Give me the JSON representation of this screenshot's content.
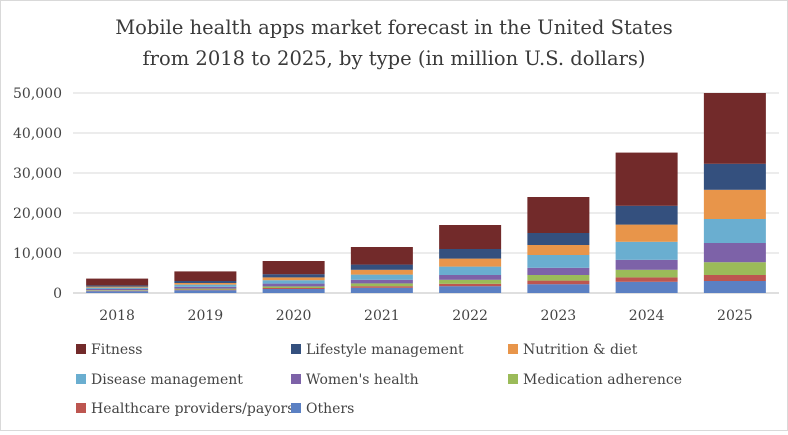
{
  "chart_data": {
    "type": "bar",
    "stacked": true,
    "title": "Mobile health apps market forecast in the United States from 2018 to 2025, by type (in million U.S. dollars)",
    "title_lines": [
      "Mobile health apps market forecast in the United States",
      "from 2018 to 2025, by type (in million U.S. dollars)"
    ],
    "xlabel": "",
    "ylabel": "",
    "categories": [
      "2018",
      "2019",
      "2020",
      "2021",
      "2022",
      "2023",
      "2024",
      "2025"
    ],
    "ylim": [
      0,
      50000
    ],
    "yticks": [
      0,
      10000,
      20000,
      30000,
      40000,
      50000
    ],
    "ytick_labels": [
      "0",
      "10,000",
      "20,000",
      "30,000",
      "40,000",
      "50,000"
    ],
    "grid": true,
    "legend_position": "bottom",
    "series": [
      {
        "name": "Others",
        "color": "#5b80c3",
        "values": [
          450,
          700,
          1000,
          1300,
          1700,
          2200,
          2800,
          3000
        ]
      },
      {
        "name": "Healthcare providers/payors",
        "color": "#bd5650",
        "values": [
          100,
          150,
          250,
          400,
          600,
          900,
          1100,
          1500
        ]
      },
      {
        "name": "Medication adherence",
        "color": "#9bbb59",
        "values": [
          150,
          250,
          400,
          700,
          1000,
          1400,
          1900,
          3200
        ]
      },
      {
        "name": "Women's health",
        "color": "#7d62a8",
        "values": [
          300,
          450,
          700,
          900,
          1200,
          1800,
          2500,
          4800
        ]
      },
      {
        "name": "Disease management",
        "color": "#6aaed0",
        "values": [
          350,
          550,
          850,
          1300,
          2100,
          3200,
          4500,
          6000
        ]
      },
      {
        "name": "Nutrition & diet",
        "color": "#e8954a",
        "values": [
          250,
          400,
          700,
          1200,
          2000,
          2500,
          4300,
          7300
        ]
      },
      {
        "name": "Lifestyle management",
        "color": "#34507e",
        "values": [
          300,
          500,
          800,
          1300,
          2400,
          3000,
          4700,
          6500
        ]
      },
      {
        "name": "Fitness",
        "color": "#722a2a",
        "values": [
          1700,
          2400,
          3300,
          4400,
          6000,
          9000,
          13300,
          17700
        ]
      }
    ],
    "legend_order": [
      "Fitness",
      "Lifestyle management",
      "Nutrition & diet",
      "Disease management",
      "Women's health",
      "Medication adherence",
      "Healthcare providers/payors",
      "Others"
    ]
  }
}
